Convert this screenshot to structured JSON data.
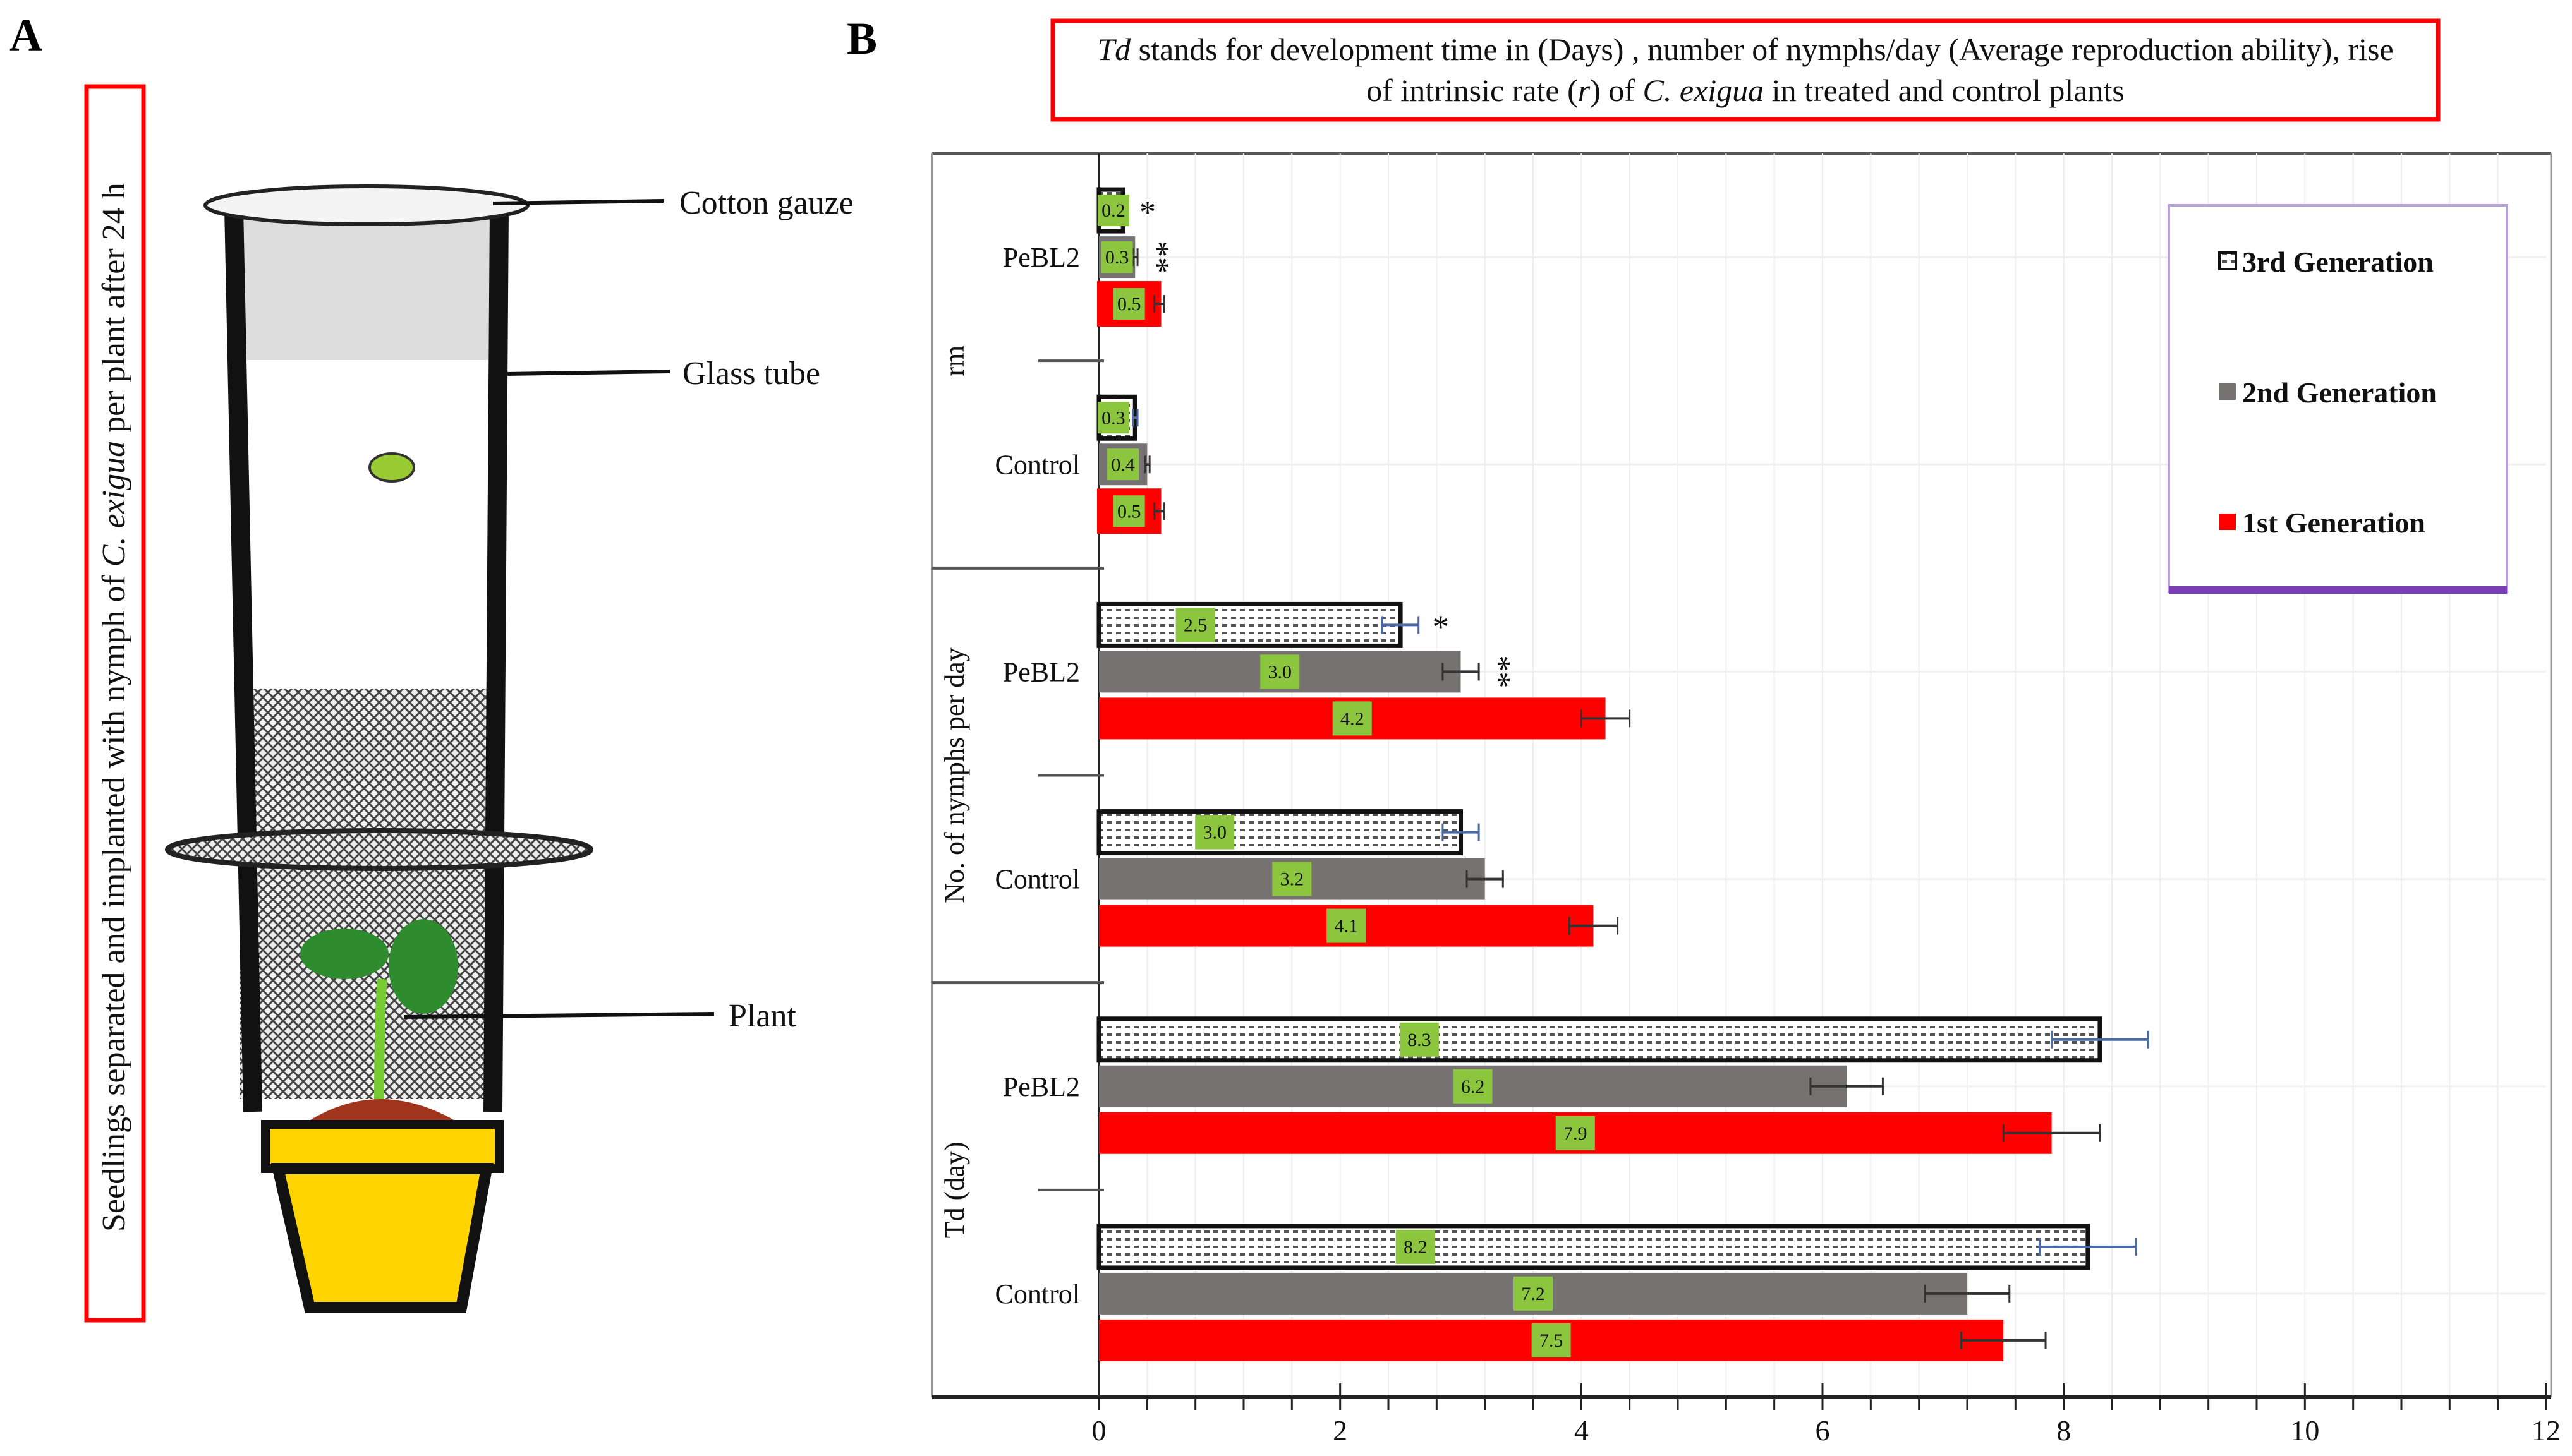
{
  "panel_a": {
    "letter": "A",
    "side_caption_parts": [
      {
        "text": "Seedlings separated and implanted with nymph of ",
        "italic": false
      },
      {
        "text": "C. exigua",
        "italic": true
      },
      {
        "text": " per plant after 24 h",
        "italic": false
      }
    ],
    "labels": {
      "cotton_gauze": "Cotton gauze",
      "glass_tube": "Glass tube",
      "plant": "Plant"
    }
  },
  "panel_b": {
    "letter": "B"
  },
  "colors": {
    "first": "#ff0000",
    "second": "#777272",
    "third": "#ffffff",
    "value_box": "#8cc63f",
    "legend_border": "#7b3fb5",
    "title_border": "#ff0000"
  },
  "chart_data": {
    "type": "bar",
    "orientation": "horizontal",
    "title_lines": [
      [
        {
          "text": "Td",
          "italic": true
        },
        {
          "text": " stands for development time in (Days) , number of nymphs/day  (Average reproduction ability), rise",
          "italic": false
        }
      ],
      [
        {
          "text": "of intrinsic rate (",
          "italic": false
        },
        {
          "text": "r",
          "italic": true
        },
        {
          "text": ") of ",
          "italic": false
        },
        {
          "text": "C. exigua",
          "italic": true
        },
        {
          "text": " in treated and control plants",
          "italic": false
        }
      ]
    ],
    "xlim": [
      0,
      12
    ],
    "xticks": [
      "0",
      "2",
      "4",
      "6",
      "8",
      "10",
      "12"
    ],
    "legend": [
      "3rd Generation",
      "2nd Generation",
      "1st Generation"
    ],
    "legend_position": "top-right",
    "groups": [
      {
        "label": "rm",
        "subgroups": [
          {
            "label": "PeBL2",
            "values": [
              0.2,
              0.3,
              0.5
            ],
            "errors": [
              0.02,
              0.02,
              0.04
            ],
            "annotations": [
              "*",
              "**",
              ""
            ]
          },
          {
            "label": "Control",
            "values": [
              0.3,
              0.4,
              0.5
            ],
            "errors": [
              0.02,
              0.02,
              0.04
            ],
            "annotations": [
              "",
              "",
              ""
            ]
          }
        ]
      },
      {
        "label": "No. of nymphs per day",
        "subgroups": [
          {
            "label": "PeBL2",
            "values": [
              2.5,
              3.0,
              4.2
            ],
            "errors": [
              0.15,
              0.15,
              0.2
            ],
            "annotations": [
              "*",
              "**",
              ""
            ]
          },
          {
            "label": "Control",
            "values": [
              3.0,
              3.2,
              4.1
            ],
            "errors": [
              0.15,
              0.15,
              0.2
            ],
            "annotations": [
              "",
              "",
              ""
            ]
          }
        ]
      },
      {
        "label": "Td (day)",
        "subgroups": [
          {
            "label": "PeBL2",
            "values": [
              8.3,
              6.2,
              7.9
            ],
            "errors": [
              0.4,
              0.3,
              0.4
            ],
            "annotations": [
              "",
              "",
              ""
            ]
          },
          {
            "label": "Control",
            "values": [
              8.2,
              7.2,
              7.5
            ],
            "errors": [
              0.4,
              0.35,
              0.35
            ],
            "annotations": [
              "",
              "",
              ""
            ]
          }
        ]
      }
    ],
    "series_order": [
      "3rd Generation",
      "2nd Generation",
      "1st Generation"
    ]
  }
}
